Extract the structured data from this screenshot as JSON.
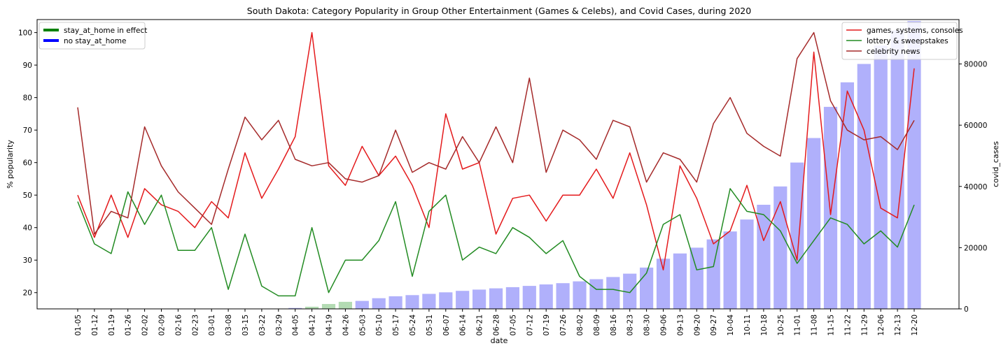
{
  "chart_data": {
    "type": "line",
    "title": "South Dakota: Category Popularity in Group Other Entertainment (Games & Celebs), and Covid Cases, during 2020",
    "xlabel": "date",
    "ylabel": "% popularity",
    "y2label": "covid_cases",
    "ylim": [
      15,
      104
    ],
    "y2lim": [
      0,
      94500
    ],
    "yticks": [
      20,
      30,
      40,
      50,
      60,
      70,
      80,
      90,
      100
    ],
    "y2ticks": [
      0,
      20000,
      40000,
      60000,
      80000
    ],
    "grid": false,
    "categories": [
      "01-05",
      "01-12",
      "01-19",
      "01-26",
      "02-02",
      "02-09",
      "02-16",
      "02-23",
      "03-01",
      "03-08",
      "03-15",
      "03-22",
      "03-29",
      "04-05",
      "04-12",
      "04-19",
      "04-26",
      "05-03",
      "05-10",
      "05-17",
      "05-24",
      "05-31",
      "06-07",
      "06-14",
      "06-21",
      "06-28",
      "07-05",
      "07-12",
      "07-19",
      "07-26",
      "08-02",
      "08-09",
      "08-16",
      "08-23",
      "08-30",
      "09-06",
      "09-13",
      "09-20",
      "09-27",
      "10-04",
      "10-11",
      "10-18",
      "10-25",
      "11-01",
      "11-08",
      "11-15",
      "11-22",
      "11-29",
      "12-06",
      "12-13",
      "12-20"
    ],
    "series": [
      {
        "name": "games, systems, consoles",
        "color": "#e41a1c",
        "values": [
          50,
          37,
          50,
          37,
          52,
          47,
          45,
          40,
          48,
          43,
          63,
          49,
          58,
          68,
          100,
          59,
          53,
          65,
          56,
          62,
          53,
          40,
          75,
          58,
          60,
          38,
          49,
          50,
          42,
          50,
          50,
          58,
          49,
          63,
          47,
          27,
          59,
          49,
          35,
          39,
          53,
          36,
          48,
          30,
          94,
          44,
          82,
          70,
          46,
          43,
          89
        ]
      },
      {
        "name": "lottery & sweepstakes",
        "color": "#228b22",
        "values": [
          48,
          35,
          32,
          51,
          41,
          50,
          33,
          33,
          40,
          21,
          38,
          22,
          19,
          19,
          40,
          20,
          30,
          30,
          36,
          48,
          25,
          45,
          50,
          30,
          34,
          32,
          40,
          37,
          32,
          36,
          25,
          21,
          21,
          20,
          26,
          41,
          44,
          27,
          28,
          52,
          45,
          44,
          39,
          29,
          36,
          43,
          41,
          35,
          39,
          34,
          47
        ]
      },
      {
        "name": "celebrity news",
        "color": "#a52a2a",
        "values": [
          77,
          38,
          45,
          43,
          71,
          59,
          51,
          46,
          41,
          58,
          74,
          67,
          73,
          61,
          59,
          60,
          55,
          54,
          56,
          70,
          57,
          60,
          58,
          68,
          60,
          71,
          60,
          86,
          57,
          70,
          67,
          61,
          73,
          71,
          54,
          63,
          61,
          54,
          72,
          80,
          69,
          65,
          62,
          92,
          100,
          79,
          70,
          67,
          68,
          64,
          73
        ]
      }
    ],
    "bars": {
      "name": "covid_cases",
      "values": [
        0,
        0,
        0,
        0,
        0,
        0,
        0,
        0,
        0,
        0,
        0,
        0,
        0,
        300,
        700,
        1600,
        2300,
        2600,
        3500,
        4100,
        4500,
        4900,
        5400,
        5900,
        6300,
        6700,
        7100,
        7500,
        8000,
        8400,
        9000,
        9700,
        10400,
        11500,
        13500,
        16400,
        18100,
        20000,
        22700,
        25300,
        29200,
        34000,
        40000,
        47800,
        55800,
        66000,
        74000,
        80000,
        86000,
        91000,
        94000
      ],
      "color": "#b0b0fb",
      "stay_at_home_color": "#b3dbb3",
      "stay_at_home_indices": [
        14,
        15,
        16
      ]
    },
    "legend_left": {
      "placement": "top-left",
      "items": [
        {
          "label": "stay_at_home in effect",
          "color": "#008000"
        },
        {
          "label": "no stay_at_home",
          "color": "#0000ff"
        }
      ]
    },
    "legend_right": {
      "placement": "top-right",
      "items": [
        {
          "label": "games, systems, consoles",
          "color": "#e41a1c"
        },
        {
          "label": "lottery & sweepstakes",
          "color": "#228b22"
        },
        {
          "label": "celebrity news",
          "color": "#a52a2a"
        }
      ]
    }
  }
}
